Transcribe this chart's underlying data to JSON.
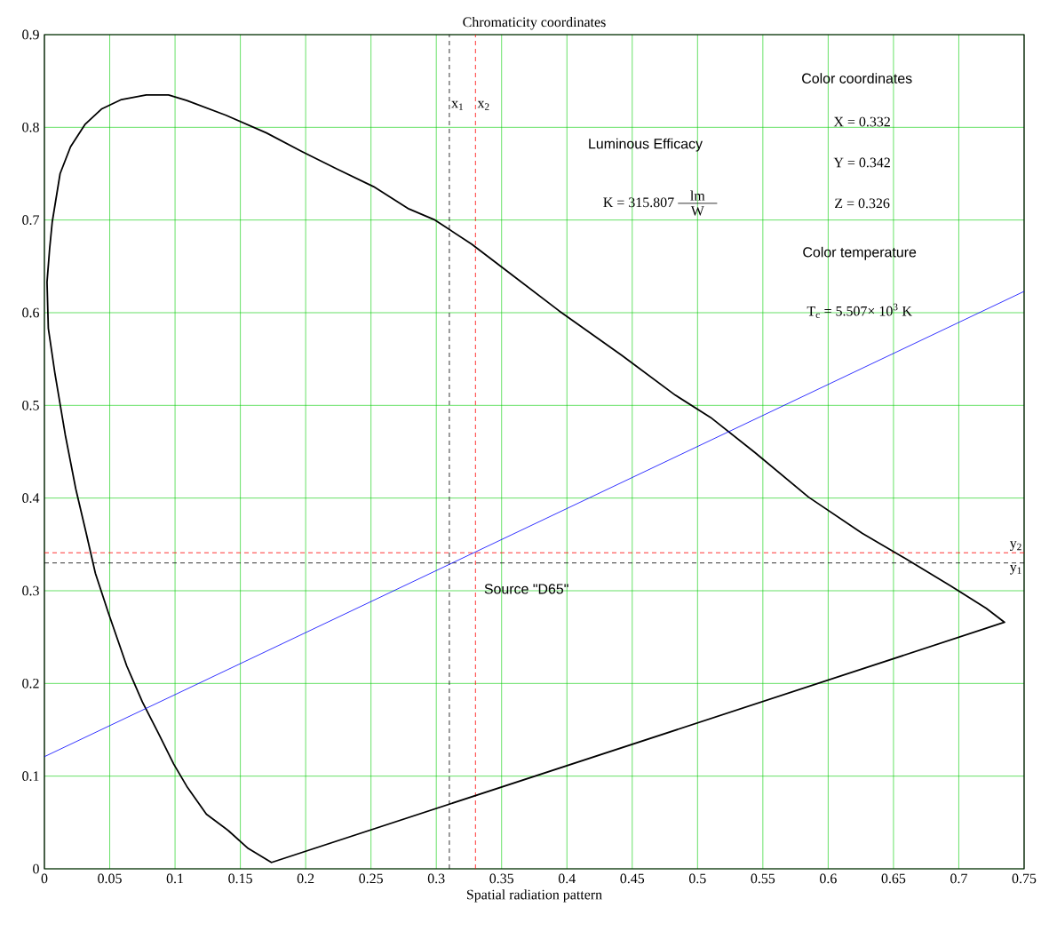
{
  "chart_data": {
    "type": "line",
    "title": "Chromaticity coordinates",
    "xlabel": "Spatial radiation pattern",
    "xlim": [
      0,
      0.75
    ],
    "ylim": [
      0,
      0.9
    ],
    "xticks": [
      0,
      0.05,
      0.1,
      0.15,
      0.2,
      0.25,
      0.3,
      0.35,
      0.4,
      0.45,
      0.5,
      0.55,
      0.6,
      0.65,
      0.7,
      0.75
    ],
    "yticks": [
      0,
      0.1,
      0.2,
      0.3,
      0.4,
      0.5,
      0.6,
      0.7,
      0.8,
      0.9
    ],
    "grid": true,
    "marker": "none",
    "line_style": "solid",
    "series": [
      {
        "color": "#000000",
        "x": [
          0.174,
          0.156,
          0.141,
          0.124,
          0.109,
          0.099,
          0.087,
          0.075,
          0.063,
          0.049,
          0.039,
          0.032,
          0.024,
          0.016,
          0.008,
          0.003,
          0.002,
          0.004,
          0.006,
          0.012,
          0.02,
          0.031,
          0.044,
          0.059,
          0.078,
          0.095,
          0.109,
          0.139,
          0.17,
          0.197,
          0.224,
          0.252,
          0.279,
          0.299,
          0.327,
          0.354,
          0.394,
          0.442,
          0.483,
          0.51,
          0.544,
          0.585,
          0.626,
          0.66,
          0.694,
          0.721,
          0.735,
          0.1735
        ],
        "values": [
          0.0067,
          0.022,
          0.041,
          0.059,
          0.089,
          0.113,
          0.147,
          0.18,
          0.219,
          0.276,
          0.319,
          0.362,
          0.41,
          0.468,
          0.535,
          0.583,
          0.633,
          0.669,
          0.698,
          0.75,
          0.779,
          0.803,
          0.82,
          0.83,
          0.835,
          0.835,
          0.829,
          0.813,
          0.794,
          0.774,
          0.755,
          0.736,
          0.712,
          0.7,
          0.674,
          0.645,
          0.602,
          0.554,
          0.511,
          0.487,
          0.449,
          0.401,
          0.362,
          0.334,
          0.305,
          0.281,
          0.266,
          0.0067
        ]
      },
      {
        "color": "#0000ff",
        "x": [
          0,
          0.75
        ],
        "values": [
          0.121,
          0.623
        ]
      }
    ],
    "ref_lines": [
      {
        "axis": "x",
        "value": 0.31,
        "label": "x$_{1}$",
        "color": "#000000",
        "line_style": "dashed"
      },
      {
        "axis": "x",
        "value": 0.33,
        "label": "x$_{2}$",
        "color": "#ff0000",
        "line_style": "dashed"
      },
      {
        "axis": "y",
        "value": 0.33,
        "label": "y$_{1}$",
        "color": "#000000",
        "line_style": "dashed"
      },
      {
        "axis": "y",
        "value": 0.341,
        "label": "y$_{2}$",
        "color": "#ff0000",
        "line_style": "dashed"
      }
    ],
    "annotations": [
      "Color coordinates",
      "X = 0.332",
      "Y = 0.342",
      "Z = 0.326",
      "Color temperature",
      "T$_{c}$ = 5.507× 10$^{3}$ K",
      "Luminous Efficacy",
      "K = 315.807",
      "lm",
      "W",
      "Source \"D65\""
    ]
  }
}
